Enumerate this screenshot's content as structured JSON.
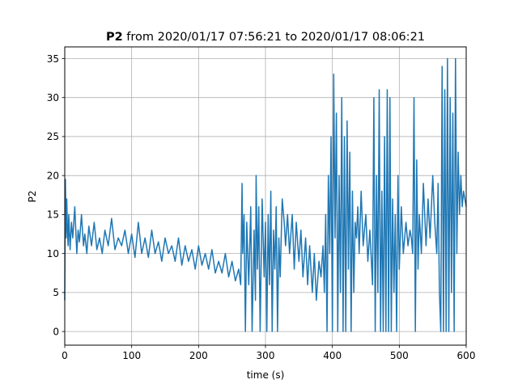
{
  "chart_data": {
    "type": "line",
    "title": {
      "bold_part": "P2",
      "rest": " from 2020/01/17 07:56:21 to 2020/01/17 08:06:21"
    },
    "xlabel": "time (s)",
    "ylabel": "P2",
    "xlim": [
      0,
      600
    ],
    "ylim": [
      -1.75,
      36.5
    ],
    "xticks": [
      0,
      100,
      200,
      300,
      400,
      500,
      600
    ],
    "yticks": [
      0,
      5,
      10,
      15,
      20,
      25,
      30,
      35
    ],
    "grid": true,
    "series": [
      {
        "color": "#1f77b4",
        "x": [
          0,
          1,
          2,
          3,
          4,
          5,
          6,
          8,
          10,
          12,
          15,
          18,
          20,
          22,
          25,
          28,
          30,
          33,
          36,
          40,
          44,
          48,
          52,
          56,
          60,
          65,
          70,
          75,
          80,
          85,
          90,
          95,
          100,
          105,
          110,
          115,
          120,
          125,
          130,
          135,
          140,
          145,
          150,
          155,
          160,
          165,
          170,
          175,
          180,
          185,
          190,
          195,
          200,
          205,
          210,
          215,
          220,
          225,
          230,
          235,
          240,
          245,
          250,
          255,
          260,
          263,
          265,
          266,
          268,
          270,
          272,
          275,
          278,
          280,
          283,
          285,
          286,
          288,
          290,
          292,
          295,
          298,
          300,
          302,
          304,
          306,
          308,
          310,
          312,
          314,
          316,
          318,
          320,
          322,
          325,
          328,
          330,
          333,
          336,
          340,
          343,
          346,
          350,
          353,
          356,
          360,
          363,
          366,
          370,
          373,
          376,
          380,
          383,
          386,
          388,
          390,
          392,
          394,
          396,
          398,
          400,
          402,
          404,
          406,
          408,
          410,
          412,
          414,
          416,
          418,
          420,
          422,
          424,
          426,
          428,
          430,
          432,
          434,
          436,
          438,
          440,
          443,
          446,
          450,
          453,
          456,
          460,
          462,
          464,
          466,
          468,
          470,
          472,
          474,
          476,
          478,
          480,
          482,
          484,
          486,
          488,
          490,
          492,
          494,
          496,
          498,
          500,
          503,
          506,
          510,
          513,
          516,
          518,
          520,
          522,
          524,
          526,
          528,
          530,
          533,
          536,
          540,
          543,
          546,
          550,
          553,
          556,
          558,
          560,
          562,
          564,
          566,
          568,
          570,
          572,
          574,
          576,
          578,
          580,
          582,
          584,
          586,
          588,
          590,
          592,
          594,
          596,
          598,
          600
        ],
        "y": [
          4,
          19.5,
          12,
          17,
          13,
          11,
          15,
          10.5,
          14,
          12,
          16,
          10,
          13,
          11.5,
          15,
          11,
          12.5,
          10,
          13.5,
          11,
          14,
          10.5,
          12,
          10,
          13,
          11,
          14.5,
          10.5,
          12,
          11,
          13,
          10,
          12.5,
          9.5,
          14,
          10,
          12,
          9.5,
          13,
          10,
          11.5,
          9,
          12,
          10,
          11,
          9,
          12,
          8.5,
          11,
          9,
          10.5,
          8,
          11,
          8.5,
          10,
          8,
          10.5,
          7.5,
          9,
          7.5,
          10,
          7,
          9,
          6.5,
          8,
          6,
          19,
          10,
          15,
          0,
          14,
          6,
          16,
          0,
          13,
          4,
          20,
          8,
          16,
          0,
          17,
          7,
          14,
          0,
          15,
          6,
          18,
          0,
          13,
          8,
          16,
          0,
          12,
          7,
          17,
          14,
          11,
          15,
          10,
          15,
          8,
          14,
          9,
          13,
          7,
          12,
          6,
          11,
          5,
          10,
          4,
          9,
          7,
          11,
          5,
          15,
          0,
          20,
          10,
          25,
          0,
          33,
          12,
          28,
          0,
          20,
          5,
          30,
          0,
          25,
          0,
          27,
          8,
          23,
          0,
          18,
          5,
          14,
          12,
          16,
          10,
          18,
          11,
          15,
          9,
          13,
          6,
          30,
          0,
          20,
          5,
          31,
          0,
          18,
          0,
          25,
          0,
          31,
          0,
          30,
          0,
          17,
          5,
          15,
          0,
          20,
          8,
          16,
          10,
          14,
          11,
          13,
          12,
          10,
          30,
          0,
          22,
          8,
          15,
          10,
          19,
          11,
          17,
          12,
          20,
          14,
          10,
          19,
          5,
          0,
          34,
          0,
          31,
          0,
          35,
          0,
          30,
          5,
          28,
          0,
          35,
          10,
          23,
          15,
          20,
          16,
          18,
          17,
          16
        ]
      }
    ]
  }
}
